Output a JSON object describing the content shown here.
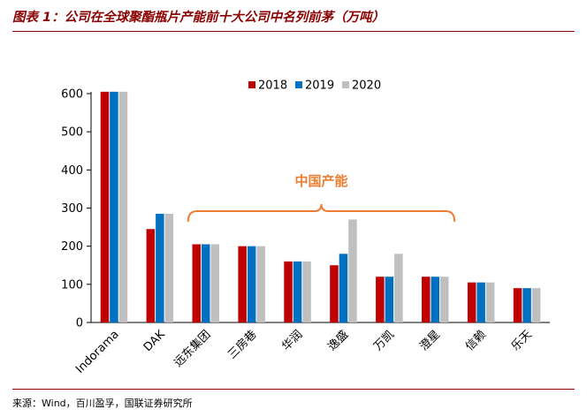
{
  "figure": {
    "title": "图表 1：公司在全球聚酯瓶片产能前十大公司中名列前茅（万吨）",
    "source": "来源：Wind，百川盈孚，国联证券研究所"
  },
  "chart_data": {
    "type": "bar",
    "categories": [
      "Indorama",
      "DAK",
      "远东集团",
      "三房巷",
      "华润",
      "逸盛",
      "万凯",
      "澄星",
      "信赖",
      "乐天"
    ],
    "series": [
      {
        "name": "2018",
        "color": "#C00000",
        "values": [
          605,
          245,
          205,
          200,
          160,
          150,
          120,
          120,
          105,
          90
        ]
      },
      {
        "name": "2019",
        "color": "#0070C0",
        "values": [
          605,
          285,
          205,
          200,
          160,
          180,
          120,
          120,
          105,
          90
        ]
      },
      {
        "name": "2020",
        "color": "#BFBFBF",
        "values": [
          605,
          285,
          205,
          200,
          160,
          270,
          180,
          120,
          105,
          90
        ]
      }
    ],
    "ylim": [
      0,
      600
    ],
    "yticks": [
      0,
      100,
      200,
      300,
      400,
      500,
      600
    ],
    "legend_position": "top-center",
    "grid": false,
    "annotation": {
      "text": "中国产能",
      "color": "#ED7D31",
      "from_category": "远东集团",
      "to_category": "澄星"
    }
  }
}
